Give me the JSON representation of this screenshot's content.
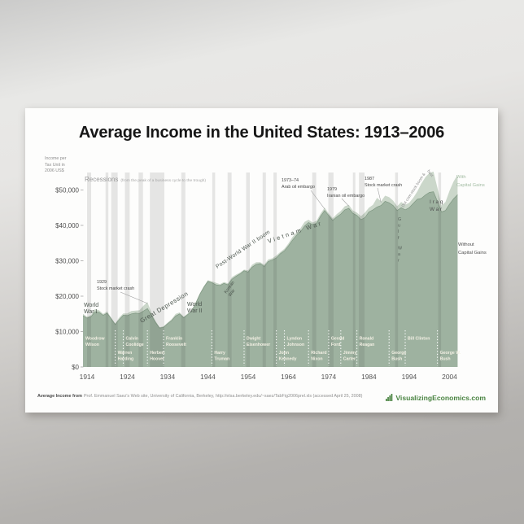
{
  "poster": {
    "title": "Average Income in the United States: 1913–2006",
    "y_axis_unit_lines": [
      "Income per",
      "Tax Unit in",
      "2006 US$"
    ],
    "recessions_label": "Recessions",
    "recessions_sublabel": "(from the peak of a business cycle to the trough)",
    "legend": {
      "with_lines": [
        "With",
        "Capital Gains"
      ],
      "with_color": "#a4bda4",
      "without_lines": [
        "Without",
        "Capital Gains"
      ],
      "without_color": "#4f4f4f"
    },
    "footer": {
      "source_prefix": "Average Income from",
      "source_text": "Prof. Emmanuel Saez's Web site, University of California, Berkeley, http://elsa.berkeley.edu/~saez/TabFig2006prel.xls (accessed April 25, 2008)",
      "brand": "VisualizingEconomics.com",
      "brand_color": "#4a8442"
    }
  },
  "chart_data": {
    "type": "area",
    "title": "Average Income in the United States: 1913–2006",
    "ylabel": "Income per Tax Unit in 2006 US$",
    "units": "thousands of 2006 US dollars",
    "x_range": [
      1913,
      2006
    ],
    "x_step": 1,
    "ylim": [
      0,
      55
    ],
    "grid": false,
    "legend_position": "right",
    "x_ticks": [
      1914,
      1924,
      1934,
      1944,
      1954,
      1964,
      1974,
      1984,
      1994,
      2004
    ],
    "y_ticks": [
      {
        "value": 50,
        "label": "$50,000"
      },
      {
        "value": 40,
        "label": "$40,000"
      },
      {
        "value": 30,
        "label": "$30,000"
      },
      {
        "value": 20,
        "label": "$20,000"
      },
      {
        "value": 10,
        "label": "$10,000"
      },
      {
        "value": 0,
        "label": "$0"
      }
    ],
    "series": [
      {
        "name": "With Capital Gains",
        "color": "#cbd7ca",
        "values": [
          15.0,
          14.2,
          14.7,
          16.4,
          16.0,
          15.0,
          15.7,
          13.9,
          12.3,
          14.0,
          15.1,
          15.1,
          15.8,
          15.9,
          16.0,
          17.3,
          18.3,
          15.3,
          13.0,
          11.2,
          11.5,
          12.5,
          13.5,
          15.0,
          15.4,
          14.2,
          15.1,
          16.1,
          18.3,
          20.8,
          22.8,
          24.5,
          24.2,
          23.8,
          23.4,
          24.0,
          23.6,
          25.4,
          26.1,
          26.7,
          27.5,
          27.3,
          28.9,
          29.6,
          29.6,
          28.9,
          30.4,
          30.7,
          31.5,
          32.5,
          33.4,
          34.9,
          36.7,
          38.0,
          39.2,
          41.0,
          41.6,
          40.8,
          41.3,
          43.4,
          45.0,
          43.4,
          42.0,
          43.2,
          44.1,
          45.4,
          45.8,
          44.2,
          43.6,
          42.6,
          43.6,
          45.0,
          45.8,
          47.8,
          46.8,
          48.4,
          48.0,
          47.0,
          45.4,
          46.6,
          45.8,
          46.4,
          47.8,
          49.6,
          51.8,
          53.6,
          54.8,
          55.2,
          50.6,
          45.6,
          46.6,
          49.8,
          52.4,
          54.3
        ]
      },
      {
        "name": "Without Capital Gains",
        "color": "#9eb2a0",
        "values": [
          14.5,
          13.8,
          14.2,
          15.6,
          15.4,
          14.6,
          15.2,
          13.6,
          12.0,
          13.4,
          14.6,
          14.5,
          15.0,
          15.2,
          15.1,
          15.8,
          16.5,
          14.5,
          12.6,
          11.0,
          11.2,
          12.2,
          13.1,
          14.4,
          15.0,
          13.9,
          14.8,
          15.8,
          18.0,
          20.5,
          22.5,
          24.2,
          23.8,
          23.2,
          23.0,
          23.6,
          23.2,
          24.8,
          25.6,
          26.3,
          27.2,
          26.8,
          28.2,
          29.0,
          29.2,
          28.4,
          29.8,
          30.2,
          30.8,
          32.0,
          32.8,
          34.2,
          35.8,
          37.2,
          38.2,
          39.8,
          40.8,
          40.2,
          40.6,
          42.6,
          44.2,
          42.8,
          41.4,
          42.4,
          43.2,
          44.4,
          44.8,
          43.4,
          42.8,
          41.6,
          42.2,
          43.8,
          44.4,
          45.2,
          45.6,
          46.8,
          46.4,
          45.6,
          44.2,
          45.0,
          44.4,
          45.0,
          46.2,
          47.4,
          47.6,
          48.6,
          49.3,
          49.5,
          46.8,
          43.8,
          44.2,
          46.0,
          47.5,
          48.7
        ]
      }
    ],
    "recession_band_color": "rgba(55,55,55,0.12)",
    "recessions": [
      [
        1914.0,
        1915.0
      ],
      [
        1918.6,
        1919.3
      ],
      [
        1920.0,
        1921.6
      ],
      [
        1923.4,
        1924.6
      ],
      [
        1926.8,
        1927.9
      ],
      [
        1929.6,
        1933.2
      ],
      [
        1937.4,
        1938.4
      ],
      [
        1945.1,
        1945.8
      ],
      [
        1948.9,
        1949.9
      ],
      [
        1953.5,
        1954.4
      ],
      [
        1957.6,
        1958.4
      ],
      [
        1960.3,
        1961.1
      ],
      [
        1969.9,
        1970.9
      ],
      [
        1973.9,
        1975.2
      ],
      [
        1980.0,
        1980.6
      ],
      [
        1981.5,
        1982.9
      ],
      [
        1990.5,
        1991.2
      ],
      [
        2001.2,
        2001.9
      ]
    ],
    "presidents": [
      {
        "name": "Woodrow Wilson",
        "lines": [
          "Woodrow",
          "Wilson"
        ],
        "start": 1913,
        "end": 1921,
        "row": 0
      },
      {
        "name": "Warren Harding",
        "lines": [
          "Warren",
          "Harding"
        ],
        "start": 1921,
        "end": 1923,
        "row": 1
      },
      {
        "name": "Calvin Coolidge",
        "lines": [
          "Calvin",
          "Coolidge"
        ],
        "start": 1923,
        "end": 1929,
        "row": 0
      },
      {
        "name": "Herbert Hoover",
        "lines": [
          "Herbert",
          "Hoover"
        ],
        "start": 1929,
        "end": 1933,
        "row": 1
      },
      {
        "name": "Franklin Roosevelt",
        "lines": [
          "Franklin",
          "Roosevelt"
        ],
        "start": 1933,
        "end": 1945,
        "row": 0
      },
      {
        "name": "Harry Truman",
        "lines": [
          "Harry",
          "Truman"
        ],
        "start": 1945,
        "end": 1953,
        "row": 1
      },
      {
        "name": "Dwight Eisenhower",
        "lines": [
          "Dwight",
          "Eisenhower"
        ],
        "start": 1953,
        "end": 1961,
        "row": 0
      },
      {
        "name": "John Kennedy",
        "lines": [
          "John",
          "Kennedy"
        ],
        "start": 1961,
        "end": 1963,
        "row": 1
      },
      {
        "name": "Lyndon Johnson",
        "lines": [
          "Lyndon",
          "Johnson"
        ],
        "start": 1963,
        "end": 1969,
        "row": 0
      },
      {
        "name": "Richard Nixon",
        "lines": [
          "Richard",
          "Nixon"
        ],
        "start": 1969,
        "end": 1974,
        "row": 1
      },
      {
        "name": "Gerald Ford",
        "lines": [
          "Gerald",
          "Ford"
        ],
        "start": 1974,
        "end": 1977,
        "row": 0
      },
      {
        "name": "Jimmy Carter",
        "lines": [
          "Jimmy",
          "Carter"
        ],
        "start": 1977,
        "end": 1981,
        "row": 1
      },
      {
        "name": "Ronald Reagan",
        "lines": [
          "Ronald",
          "Reagan"
        ],
        "start": 1981,
        "end": 1989,
        "row": 0
      },
      {
        "name": "George Bush",
        "lines": [
          "George",
          "Bush"
        ],
        "start": 1989,
        "end": 1993,
        "row": 1
      },
      {
        "name": "Bill Clinton",
        "lines": [
          "Bill Clinton"
        ],
        "start": 1993,
        "end": 2001,
        "row": 0
      },
      {
        "name": "George W. Bush",
        "lines": [
          "George W.",
          "Bush"
        ],
        "start": 2001,
        "end": 2006,
        "row": 1
      }
    ],
    "eras": [
      {
        "id": "wwi",
        "lines": [
          "World",
          "War I"
        ]
      },
      {
        "id": "great-depression",
        "lines": [
          "Great Depression"
        ]
      },
      {
        "id": "wwii",
        "lines": [
          "World",
          "War II"
        ]
      },
      {
        "id": "korean-war",
        "lines": [
          "Korean",
          "War"
        ]
      },
      {
        "id": "postwar-boom",
        "lines": [
          "Post-World War II boom"
        ]
      },
      {
        "id": "vietnam-war",
        "lines": [
          "Vietnam War"
        ]
      },
      {
        "id": "gulf-war",
        "lines": [
          "Gulf War"
        ]
      },
      {
        "id": "dotcom-boom",
        "lines": [
          "Dot com stock boom &"
        ]
      },
      {
        "id": "dotcom-bust",
        "lines": [
          "bust"
        ]
      },
      {
        "id": "iraq-war",
        "lines": [
          "Iraq",
          "War"
        ]
      }
    ],
    "events": [
      {
        "id": "crash-1929",
        "lines": [
          "1929",
          "Stock market crash"
        ],
        "year": 1929,
        "value": 18.3
      },
      {
        "id": "embargo-1973",
        "lines": [
          "1973–74",
          "Arab oil embargo"
        ],
        "year": 1973,
        "value": 45.0
      },
      {
        "id": "embargo-1979",
        "lines": [
          "1979",
          "Iranian oil embargo"
        ],
        "year": 1979,
        "value": 45.8
      },
      {
        "id": "crash-1987",
        "lines": [
          "1987",
          "Stock market crash"
        ],
        "year": 1987,
        "value": 46.8
      }
    ]
  }
}
